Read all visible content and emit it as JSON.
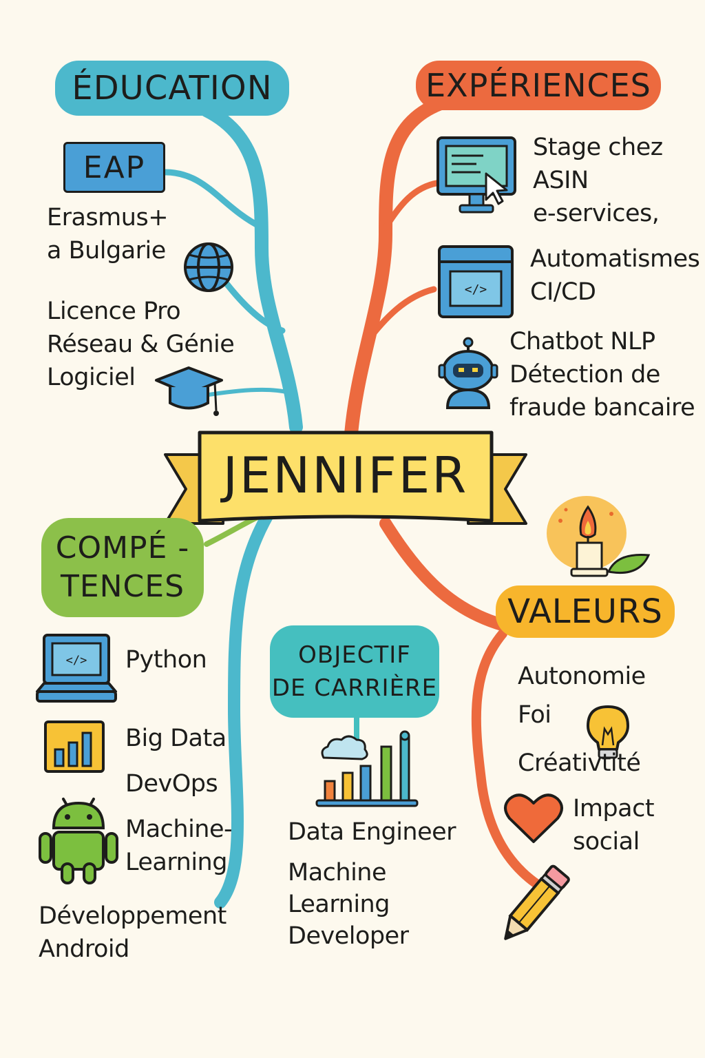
{
  "title": "JENNIFER",
  "education": {
    "heading": "ÉDUCATION",
    "eap_badge": "EAP",
    "erasmus": [
      "Erasmus+",
      "a Bulgarie"
    ],
    "licence": [
      "Licence Pro",
      "Réseau & Génie",
      "Logiciel"
    ]
  },
  "experiences": {
    "heading": "EXPÉRIENCES",
    "stage": [
      "Stage chez",
      "ASIN",
      "e-services,"
    ],
    "automatismes": [
      "Automatismes",
      "CI/CD"
    ],
    "chatbot": [
      "Chatbot NLP",
      "Détection de",
      "fraude bancaire"
    ]
  },
  "competences": {
    "heading": [
      "COMPÉ -",
      "TENCES"
    ],
    "python": "Python",
    "big_data": "Big Data",
    "devops": "DevOps",
    "machine_learning": [
      "Machine-",
      "Learning"
    ],
    "android": [
      "Développement",
      "Android"
    ]
  },
  "objectif": {
    "heading": [
      "OBJECTIF",
      "DE CARRIÈRE"
    ],
    "data_engineer": "Data Engineer",
    "ml_developer": [
      "Machine",
      "Learning",
      "Developer"
    ]
  },
  "valeurs": {
    "heading": "VALEURS",
    "autonomie": "Autonomie",
    "foi": "Foi",
    "creativite": "Créativtité",
    "impact": [
      "Impact",
      "social"
    ]
  },
  "colors": {
    "background": "#fdf9ee",
    "education": "#4cb8cc",
    "experiences": "#ec6a3f",
    "competences": "#8cc04a",
    "objectif": "#45bfbf",
    "valeurs": "#f7b52c",
    "banner": "#fde06a"
  }
}
